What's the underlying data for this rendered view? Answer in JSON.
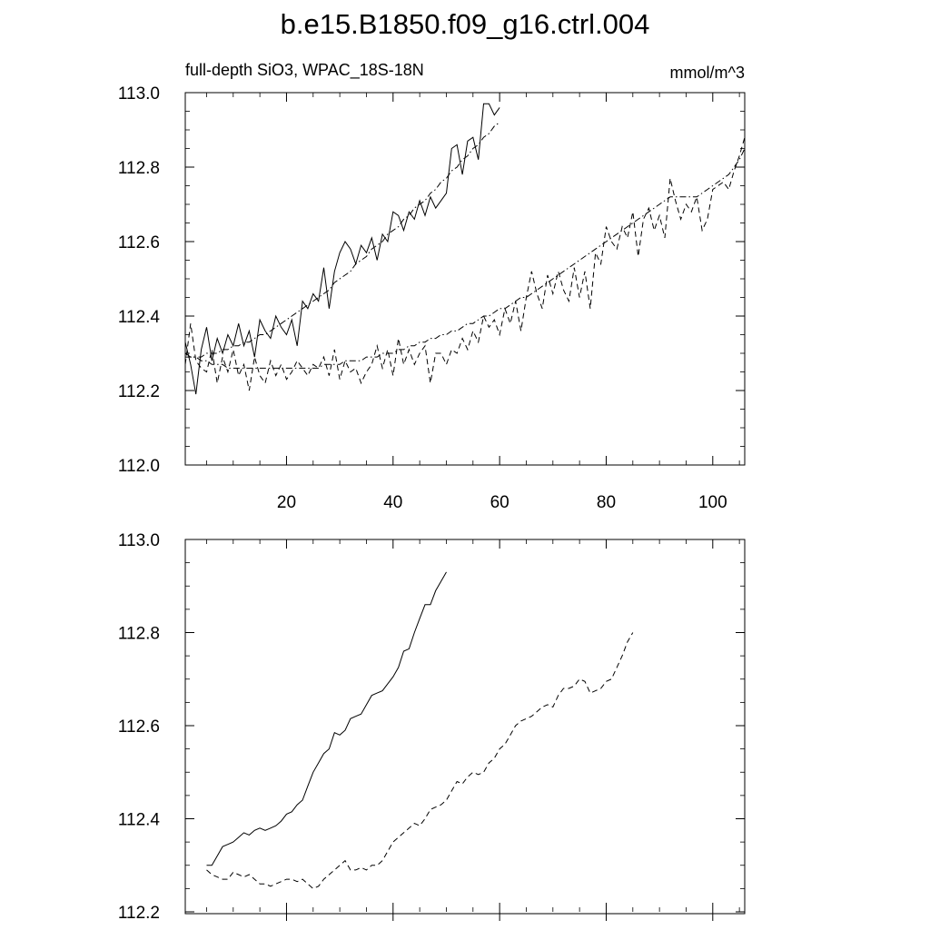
{
  "figure": {
    "title": "b.e15.B1850.f09_g16.ctrl.004"
  },
  "chart_data": [
    {
      "type": "line",
      "title": "",
      "left_label": "full-depth SiO3, WPAC_18S-18N",
      "right_label": "mmol/m^3",
      "xlabel": "",
      "ylabel": "",
      "xlim": [
        1,
        106
      ],
      "ylim": [
        112.0,
        113.0
      ],
      "x_ticks": [
        20,
        40,
        60,
        80,
        100
      ],
      "y_ticks": [
        "112.0",
        "112.2",
        "112.4",
        "112.6",
        "112.8",
        "113.0"
      ],
      "grid": false,
      "legend": "none",
      "series": [
        {
          "style": "solid",
          "x_start": 1,
          "values": [
            112.33,
            112.27,
            112.19,
            112.31,
            112.37,
            112.28,
            112.34,
            112.3,
            112.35,
            112.32,
            112.38,
            112.32,
            112.36,
            112.29,
            112.39,
            112.36,
            112.34,
            112.4,
            112.37,
            112.35,
            112.39,
            112.32,
            112.44,
            112.42,
            112.46,
            112.44,
            112.53,
            112.42,
            112.52,
            112.57,
            112.6,
            112.58,
            112.54,
            112.59,
            112.57,
            112.61,
            112.55,
            112.62,
            112.6,
            112.68,
            112.67,
            112.63,
            112.68,
            112.66,
            112.71,
            112.67,
            112.72,
            112.69,
            112.71,
            112.73,
            112.85,
            112.86,
            112.78,
            112.87,
            112.88,
            112.82,
            112.97,
            112.97,
            112.94,
            112.96
          ]
        },
        {
          "style": "dash-dot",
          "x_start": 1,
          "values": [
            112.29,
            112.29,
            112.29,
            112.29,
            112.3,
            112.3,
            112.3,
            112.31,
            112.31,
            112.32,
            112.32,
            112.33,
            112.33,
            112.34,
            112.35,
            112.35,
            112.36,
            112.37,
            112.38,
            112.39,
            112.4,
            112.41,
            112.42,
            112.43,
            112.44,
            112.45,
            112.46,
            112.47,
            112.49,
            112.5,
            112.51,
            112.52,
            112.54,
            112.55,
            112.56,
            112.58,
            112.59,
            112.6,
            112.62,
            112.63,
            112.64,
            112.66,
            112.67,
            112.69,
            112.7,
            112.71,
            112.73,
            112.74,
            112.76,
            112.77,
            112.79,
            112.8,
            112.82,
            112.83,
            112.85,
            112.86,
            112.88,
            112.89,
            112.91,
            112.92
          ]
        },
        {
          "style": "dash",
          "x_start": 1,
          "values": [
            112.27,
            112.38,
            112.28,
            112.26,
            112.25,
            112.31,
            112.22,
            112.29,
            112.25,
            112.31,
            112.24,
            112.27,
            112.2,
            112.29,
            112.24,
            112.22,
            112.28,
            112.24,
            112.27,
            112.23,
            112.25,
            112.28,
            112.26,
            112.24,
            112.27,
            112.26,
            112.29,
            112.24,
            112.31,
            112.23,
            112.28,
            112.25,
            112.26,
            112.22,
            112.25,
            112.27,
            112.32,
            112.26,
            112.31,
            112.24,
            112.34,
            112.27,
            112.31,
            112.27,
            112.3,
            112.32,
            112.22,
            112.3,
            112.3,
            112.27,
            112.31,
            112.3,
            112.34,
            112.31,
            112.36,
            112.33,
            112.4,
            112.37,
            112.39,
            112.35,
            112.42,
            112.38,
            112.44,
            112.36,
            112.45,
            112.52,
            112.46,
            112.42,
            112.51,
            112.46,
            112.52,
            112.47,
            112.44,
            112.53,
            112.45,
            112.52,
            112.42,
            112.57,
            112.54,
            112.64,
            112.6,
            112.58,
            112.64,
            112.61,
            112.68,
            112.56,
            112.66,
            112.69,
            112.63,
            112.67,
            112.61,
            112.77,
            112.71,
            112.66,
            112.7,
            112.68,
            112.72,
            112.63,
            112.66,
            112.74,
            112.75,
            112.76,
            112.74,
            112.79,
            112.83,
            112.88
          ]
        },
        {
          "style": "dash-dot",
          "x_start": 1,
          "values": [
            112.3,
            112.29,
            112.29,
            112.28,
            112.28,
            112.27,
            112.27,
            112.27,
            112.26,
            112.26,
            112.26,
            112.26,
            112.26,
            112.26,
            112.26,
            112.26,
            112.26,
            112.26,
            112.26,
            112.26,
            112.26,
            112.26,
            112.26,
            112.26,
            112.26,
            112.26,
            112.27,
            112.27,
            112.27,
            112.27,
            112.28,
            112.28,
            112.28,
            112.28,
            112.29,
            112.29,
            112.29,
            112.3,
            112.3,
            112.3,
            112.31,
            112.31,
            112.32,
            112.32,
            112.33,
            112.33,
            112.34,
            112.34,
            112.35,
            112.35,
            112.36,
            112.36,
            112.37,
            112.38,
            112.38,
            112.39,
            112.4,
            112.4,
            112.41,
            112.42,
            112.42,
            112.43,
            112.44,
            112.45,
            112.45,
            112.46,
            112.47,
            112.48,
            112.49,
            112.5,
            112.51,
            112.52,
            112.53,
            112.54,
            112.55,
            112.56,
            112.57,
            112.58,
            112.59,
            112.6,
            112.61,
            112.62,
            112.63,
            112.64,
            112.65,
            112.66,
            112.67,
            112.68,
            112.69,
            112.7,
            112.71,
            112.72,
            112.72,
            112.72,
            112.72,
            112.72,
            112.72,
            112.73,
            112.74,
            112.75,
            112.76,
            112.77,
            112.78,
            112.8,
            112.82,
            112.85
          ]
        }
      ]
    },
    {
      "type": "line",
      "title": "",
      "xlabel": "",
      "ylabel": "",
      "xlim": [
        1,
        106
      ],
      "ylim": [
        112.2,
        113.0
      ],
      "y_ticks": [
        "112.2",
        "112.4",
        "112.6",
        "112.8",
        "113.0"
      ],
      "grid": false,
      "legend": "none",
      "series": [
        {
          "style": "solid",
          "x_start": 5,
          "values": [
            112.3,
            112.3,
            112.32,
            112.34,
            112.345,
            112.35,
            112.36,
            112.37,
            112.365,
            112.375,
            112.38,
            112.375,
            112.38,
            112.385,
            112.395,
            112.41,
            112.415,
            112.43,
            112.44,
            112.47,
            112.5,
            112.52,
            112.54,
            112.55,
            112.585,
            112.58,
            112.59,
            112.615,
            112.62,
            112.625,
            112.645,
            112.665,
            112.67,
            112.675,
            112.69,
            112.705,
            112.725,
            112.76,
            112.765,
            112.8,
            112.83,
            112.86,
            112.86,
            112.89,
            112.91,
            112.93
          ]
        },
        {
          "style": "dash",
          "x_start": 5,
          "values": [
            112.29,
            112.28,
            112.275,
            112.27,
            112.27,
            112.285,
            112.28,
            112.275,
            112.28,
            112.27,
            112.26,
            112.26,
            112.255,
            112.26,
            112.265,
            112.27,
            112.27,
            112.265,
            112.27,
            112.26,
            112.25,
            112.255,
            112.27,
            112.28,
            112.29,
            112.3,
            112.31,
            112.29,
            112.29,
            112.295,
            112.29,
            112.3,
            112.3,
            112.31,
            112.33,
            112.35,
            112.36,
            112.37,
            112.38,
            112.39,
            112.385,
            112.4,
            112.42,
            112.425,
            112.43,
            112.44,
            112.46,
            112.48,
            112.475,
            112.49,
            112.5,
            112.495,
            112.5,
            112.52,
            112.53,
            112.55,
            112.56,
            112.58,
            112.6,
            112.61,
            112.615,
            112.62,
            112.63,
            112.64,
            112.645,
            112.64,
            112.665,
            112.68,
            112.68,
            112.685,
            112.7,
            112.695,
            112.67,
            112.675,
            112.68,
            112.695,
            112.7,
            112.725,
            112.75,
            112.78,
            112.8
          ]
        }
      ]
    }
  ]
}
